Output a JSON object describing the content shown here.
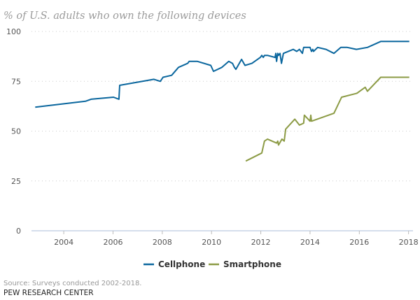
{
  "chart_data": {
    "type": "line",
    "title": "% of U.S. adults who own the following devices",
    "xlabel": "",
    "ylabel": "",
    "xlim": [
      2002.69,
      2018.18
    ],
    "ylim": [
      0,
      100
    ],
    "yticks": [
      0,
      25,
      50,
      75,
      100
    ],
    "xticks": [
      2004,
      2006,
      2008,
      2010,
      2012,
      2014,
      2016,
      2018
    ],
    "grid": "horizontal dotted",
    "legend_placement": "bottom-center",
    "series": [
      {
        "name": "Cellphone",
        "color": "#0b679e",
        "x": [
          2002.84,
          2004.88,
          2005.11,
          2006.02,
          2006.24,
          2006.27,
          2007.66,
          2007.92,
          2008.03,
          2008.38,
          2008.66,
          2009.03,
          2009.09,
          2009.43,
          2009.97,
          2010.08,
          2010.42,
          2010.7,
          2010.85,
          2010.93,
          2010.99,
          2011.22,
          2011.36,
          2011.64,
          2011.98,
          2012.04,
          2012.1,
          2012.15,
          2012.27,
          2012.58,
          2012.61,
          2012.64,
          2012.69,
          2012.72,
          2012.78,
          2012.84,
          2012.92,
          2013.32,
          2013.46,
          2013.57,
          2013.69,
          2013.74,
          2014.0,
          2014.06,
          2014.11,
          2014.14,
          2014.31,
          2014.65,
          2014.97,
          2015.25,
          2015.51,
          2015.88,
          2016.33,
          2016.87,
          2018.03
        ],
        "y": [
          62,
          65,
          66,
          67,
          66,
          73,
          76,
          75,
          77,
          78,
          82,
          84,
          85,
          85,
          83,
          80,
          82,
          85,
          84,
          82,
          81,
          86,
          83,
          84,
          87,
          88,
          87,
          88,
          88,
          87,
          89,
          85,
          89,
          88,
          89,
          84,
          89,
          91,
          90,
          91,
          89,
          92,
          92,
          90,
          91,
          90,
          92,
          91,
          89,
          92,
          92,
          91,
          92,
          95,
          95
        ]
      },
      {
        "name": "Smartphone",
        "color": "#8c9b45",
        "x": [
          2011.39,
          2012.04,
          2012.15,
          2012.27,
          2012.64,
          2012.69,
          2012.72,
          2012.86,
          2012.95,
          2013.01,
          2013.38,
          2013.57,
          2013.74,
          2013.77,
          2014.0,
          2014.03,
          2014.06,
          2014.97,
          2015.28,
          2015.9,
          2016.24,
          2016.33,
          2016.87,
          2018.03
        ],
        "y": [
          35,
          39,
          45,
          46,
          44,
          45,
          43,
          46,
          45,
          51,
          56,
          53,
          54,
          58,
          55,
          58,
          55,
          59,
          67,
          69,
          72,
          70,
          77,
          77
        ]
      }
    ]
  },
  "footer": {
    "source": "Source: Surveys conducted 2002-2018.",
    "organization": "PEW RESEARCH CENTER"
  }
}
